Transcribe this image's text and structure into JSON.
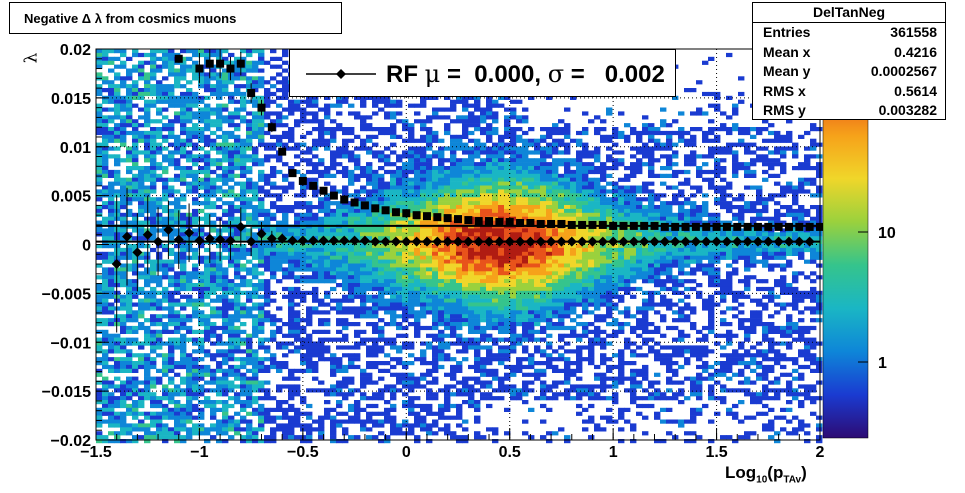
{
  "title": "Negative Δ λ from cosmics muons",
  "y_axis_label": "λ",
  "x_axis_label": {
    "main": "Log",
    "sub1": "10",
    "mid": "(p",
    "sub2": "TAv",
    "end": ")"
  },
  "stats": {
    "name": "DelTanNeg",
    "rows": [
      {
        "label": "Entries",
        "value": "361558"
      },
      {
        "label": "Mean x",
        "value": "0.4216"
      },
      {
        "label": "Mean y",
        "value": "0.0002567"
      },
      {
        "label": "RMS x",
        "value": "0.5614"
      },
      {
        "label": "RMS y",
        "value": "0.003282"
      }
    ]
  },
  "legend": {
    "prefix": "RF ",
    "mu_symbol": "μ",
    "mu_text": " =  0.000, ",
    "sigma_symbol": "σ",
    "sigma_text": " =   0.002"
  },
  "colors": {
    "markers": "#000000",
    "palette": [
      "#2d0b73",
      "#1a3bd1",
      "#0e86d8",
      "#1ab6c4",
      "#35c48c",
      "#9ad13d",
      "#f0d62a",
      "#f6a21a",
      "#e8531b",
      "#b01c12"
    ]
  },
  "chart_data": {
    "type": "heatmap",
    "x_range": [
      -1.5,
      2
    ],
    "y_range": [
      -0.02,
      0.02
    ],
    "x_ticks": [
      "−1.5",
      "−1",
      "−0.5",
      "0",
      "0.5",
      "1",
      "1.5",
      "2"
    ],
    "x_tick_values": [
      -1.5,
      -1,
      -0.5,
      0,
      0.5,
      1,
      1.5,
      2
    ],
    "y_ticks": [
      "−0.02",
      "−0.015",
      "−0.01",
      "−0.005",
      "0",
      "0.005",
      "0.01",
      "0.015",
      "0.02"
    ],
    "y_tick_values": [
      -0.02,
      -0.015,
      -0.01,
      -0.005,
      0,
      0.005,
      0.01,
      0.015,
      0.02
    ],
    "z_scale": "log",
    "z_ticks": [
      "1",
      "10"
    ],
    "z_tick_values": [
      1,
      10
    ],
    "grid": true,
    "series": [
      {
        "name": "RF",
        "marker": "diamond",
        "x": [
          -1.4,
          -1.35,
          -1.3,
          -1.25,
          -1.2,
          -1.15,
          -1.1,
          -1.05,
          -1.0,
          -0.95,
          -0.9,
          -0.85,
          -0.8,
          -0.75,
          -0.7,
          -0.65,
          -0.6,
          -0.55,
          -0.5,
          -0.45,
          -0.4,
          -0.35,
          -0.3,
          -0.25,
          -0.2,
          -0.15,
          -0.1,
          -0.05,
          0.0,
          0.05,
          0.1,
          0.15,
          0.2,
          0.25,
          0.3,
          0.35,
          0.4,
          0.45,
          0.5,
          0.55,
          0.6,
          0.65,
          0.7,
          0.75,
          0.8,
          0.85,
          0.9,
          0.95,
          1.0,
          1.05,
          1.1,
          1.15,
          1.2,
          1.25,
          1.3,
          1.35,
          1.4,
          1.45,
          1.5,
          1.55,
          1.6,
          1.65,
          1.7,
          1.75,
          1.8,
          1.85,
          1.9,
          1.95
        ],
        "y": [
          -0.002,
          0.0008,
          -0.0008,
          0.001,
          0.0003,
          0.0015,
          0.0005,
          0.0012,
          0.0004,
          0.0006,
          0.0005,
          0.0004,
          0.0018,
          0.0003,
          0.0011,
          0.0006,
          0.0006,
          0.0004,
          0.0004,
          0.0004,
          0.0004,
          0.0004,
          0.0004,
          0.0004,
          0.0004,
          0.0003,
          0.0003,
          0.0003,
          0.0003,
          0.0003,
          0.0003,
          0.0003,
          0.0003,
          0.0003,
          0.0003,
          0.0003,
          0.0003,
          0.0003,
          0.0003,
          0.0003,
          0.0003,
          0.0003,
          0.0003,
          0.0003,
          0.0003,
          0.0003,
          0.0003,
          0.0003,
          0.0003,
          0.0003,
          0.0003,
          0.0003,
          0.0003,
          0.0003,
          0.0003,
          0.0003,
          0.0003,
          0.0003,
          0.0003,
          0.0003,
          0.0003,
          0.0003,
          0.0003,
          0.0003,
          0.0003,
          0.0003,
          0.0003,
          0.0003
        ],
        "err": [
          0.007,
          0.005,
          0.004,
          0.004,
          0.0035,
          0.003,
          0.003,
          0.003,
          0.0025,
          0.0025,
          0.0022,
          0.002,
          0.002,
          0.0015,
          0.0012,
          0.0008,
          0.0005,
          0.0003,
          0.0002,
          0.0002,
          0.0001,
          0.0001,
          0.0001,
          0.0001,
          0.0001,
          0.0001,
          0.0001,
          0.0001,
          0.0001,
          0.0001,
          0.0001,
          0.0001,
          0.0001,
          0.0001,
          0.0001,
          0.0001,
          0.0001,
          0.0001,
          0.0001,
          0.0001,
          0.0001,
          0.0001,
          0.0001,
          0.0001,
          0.0001,
          0.0001,
          0.0001,
          0.0001,
          0.0001,
          0.0001,
          0.0001,
          0.0001,
          0.0001,
          0.0001,
          0.0001,
          0.0001,
          0.0001,
          0.0001,
          0.0001,
          0.0001,
          0.0001,
          0.0001,
          0.0001,
          0.0001,
          0.0001,
          0.0001,
          0.0001,
          0.0001
        ]
      },
      {
        "marker": "square",
        "x": [
          -1.1,
          -1.0,
          -0.95,
          -0.9,
          -0.85,
          -0.8,
          -0.75,
          -0.7,
          -0.65,
          -0.6,
          -0.55,
          -0.5,
          -0.45,
          -0.4,
          -0.35,
          -0.3,
          -0.25,
          -0.2,
          -0.15,
          -0.1,
          -0.05,
          0.0,
          0.05,
          0.1,
          0.15,
          0.2,
          0.25,
          0.3,
          0.35,
          0.4,
          0.45,
          0.5,
          0.55,
          0.6,
          0.65,
          0.7,
          0.75,
          0.8,
          0.85,
          0.9,
          0.95,
          1.0,
          1.05,
          1.1,
          1.15,
          1.2,
          1.25,
          1.3,
          1.35,
          1.4,
          1.45,
          1.5,
          1.55,
          1.6,
          1.65,
          1.7,
          1.75,
          1.8,
          1.85,
          1.9,
          1.95,
          2.0
        ],
        "y": [
          0.019,
          0.018,
          0.0185,
          0.0185,
          0.018,
          0.0185,
          0.0155,
          0.014,
          0.012,
          0.0095,
          0.0073,
          0.0065,
          0.006,
          0.0055,
          0.005,
          0.0046,
          0.0043,
          0.004,
          0.0037,
          0.0035,
          0.0033,
          0.0032,
          0.003,
          0.0029,
          0.0028,
          0.0027,
          0.0026,
          0.0025,
          0.0024,
          0.0024,
          0.0023,
          0.0023,
          0.0022,
          0.0022,
          0.0021,
          0.0021,
          0.0021,
          0.002,
          0.002,
          0.002,
          0.002,
          0.0019,
          0.0019,
          0.0019,
          0.0019,
          0.0019,
          0.0018,
          0.0018,
          0.0018,
          0.0018,
          0.0018,
          0.0018,
          0.0018,
          0.0018,
          0.0018,
          0.0018,
          0.0018,
          0.0018,
          0.0018,
          0.0018,
          0.0018,
          0.0018
        ],
        "err": [
          0.0004,
          0.0015,
          0.0015,
          0.0015,
          0.0012,
          0.0012,
          0.001,
          0.0008,
          0.0005,
          0.0003,
          0.0002,
          0.0002,
          0.0001,
          0.0001,
          0.0001,
          0.0001,
          0.0001,
          0.0001,
          0.0001,
          0.0001,
          0.0001,
          0.0001,
          0.0001,
          0.0001,
          0.0001,
          0.0001,
          0.0001,
          0.0001,
          0.0001,
          0.0001,
          0.0001,
          0.0001,
          0.0001,
          0.0001,
          0.0001,
          0.0001,
          0.0001,
          0.0001,
          0.0001,
          0.0001,
          0.0001,
          0.0001,
          0.0001,
          0.0001,
          0.0001,
          0.0001,
          0.0001,
          0.0001,
          0.0001,
          0.0001,
          0.0001,
          0.0001,
          0.0001,
          0.0001,
          0.0001,
          0.0001,
          0.0001,
          0.0001,
          0.0001,
          0.0001,
          0.0001,
          0.0001
        ]
      }
    ],
    "fit_lines": [
      {
        "y": 0.0003
      },
      {
        "y": 0.0019
      }
    ],
    "density_model": {
      "core_center_x": 0.45,
      "core_center_y": 0.0003,
      "description": "counts peak near x 0.3 to 0.7 around lambda 0; sparse tails at low x"
    }
  }
}
